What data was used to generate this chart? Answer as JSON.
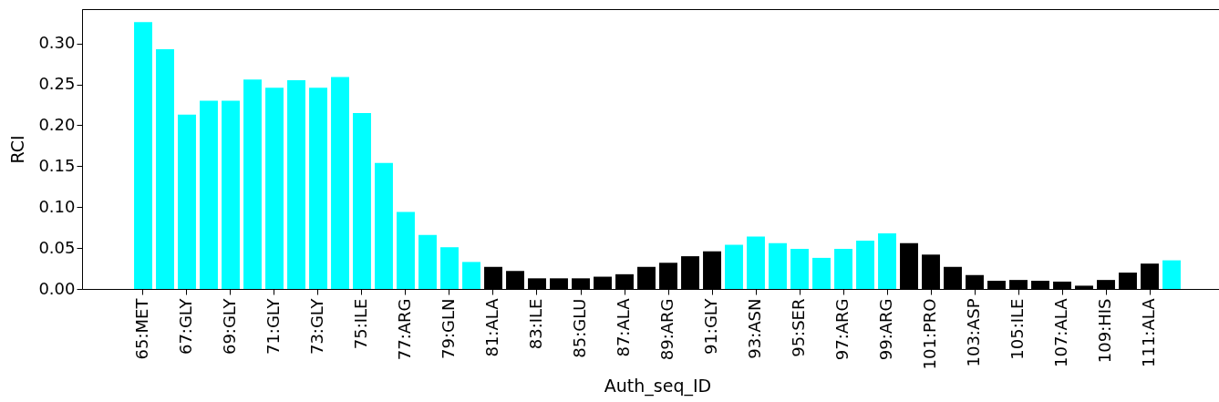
{
  "chart_data": {
    "type": "bar",
    "xlabel": "Auth_seq_ID",
    "ylabel": "RCI",
    "categories": [
      "65:MET",
      null,
      "67:GLY",
      null,
      "69:GLY",
      null,
      "71:GLY",
      null,
      "73:GLY",
      null,
      "75:ILE",
      null,
      "77:ARG",
      null,
      "79:GLN",
      null,
      "81:ALA",
      null,
      "83:ILE",
      null,
      "85:GLU",
      null,
      "87:ALA",
      null,
      "89:ARG",
      null,
      "91:GLY",
      null,
      "93:ASN",
      null,
      "95:SER",
      null,
      "97:ARG",
      null,
      "99:ARG",
      null,
      "101:PRO",
      null,
      "103:ASP",
      null,
      "105:ILE",
      null,
      "107:ALA",
      null,
      "109:HIS",
      null,
      "111:ALA",
      null
    ],
    "values": [
      0.326,
      0.293,
      0.213,
      0.23,
      0.23,
      0.256,
      0.246,
      0.255,
      0.246,
      0.259,
      0.215,
      0.154,
      0.094,
      0.066,
      0.051,
      0.033,
      0.027,
      0.022,
      0.013,
      0.013,
      0.013,
      0.015,
      0.018,
      0.027,
      0.032,
      0.04,
      0.046,
      0.054,
      0.064,
      0.056,
      0.049,
      0.038,
      0.049,
      0.059,
      0.068,
      0.056,
      0.042,
      0.027,
      0.017,
      0.01,
      0.011,
      0.01,
      0.009,
      0.004,
      0.011,
      0.02,
      0.031,
      0.035
    ],
    "colors": [
      "#00ffff",
      "#00ffff",
      "#00ffff",
      "#00ffff",
      "#00ffff",
      "#00ffff",
      "#00ffff",
      "#00ffff",
      "#00ffff",
      "#00ffff",
      "#00ffff",
      "#00ffff",
      "#00ffff",
      "#00ffff",
      "#00ffff",
      "#00ffff",
      "#000000",
      "#000000",
      "#000000",
      "#000000",
      "#000000",
      "#000000",
      "#000000",
      "#000000",
      "#000000",
      "#000000",
      "#000000",
      "#00ffff",
      "#00ffff",
      "#00ffff",
      "#00ffff",
      "#00ffff",
      "#00ffff",
      "#00ffff",
      "#00ffff",
      "#000000",
      "#000000",
      "#000000",
      "#000000",
      "#000000",
      "#000000",
      "#000000",
      "#000000",
      "#000000",
      "#000000",
      "#000000",
      "#000000",
      "#00ffff"
    ],
    "ylim": [
      0,
      0.342
    ],
    "yticks": [
      {
        "value": 0,
        "label": "0.00"
      },
      {
        "value": 0.05,
        "label": "0.05"
      },
      {
        "value": 0.1,
        "label": "0.10"
      },
      {
        "value": 0.15,
        "label": "0.15"
      },
      {
        "value": 0.2,
        "label": "0.20"
      },
      {
        "value": 0.25,
        "label": "0.25"
      },
      {
        "value": 0.3,
        "label": "0.30"
      }
    ],
    "grid": false
  }
}
